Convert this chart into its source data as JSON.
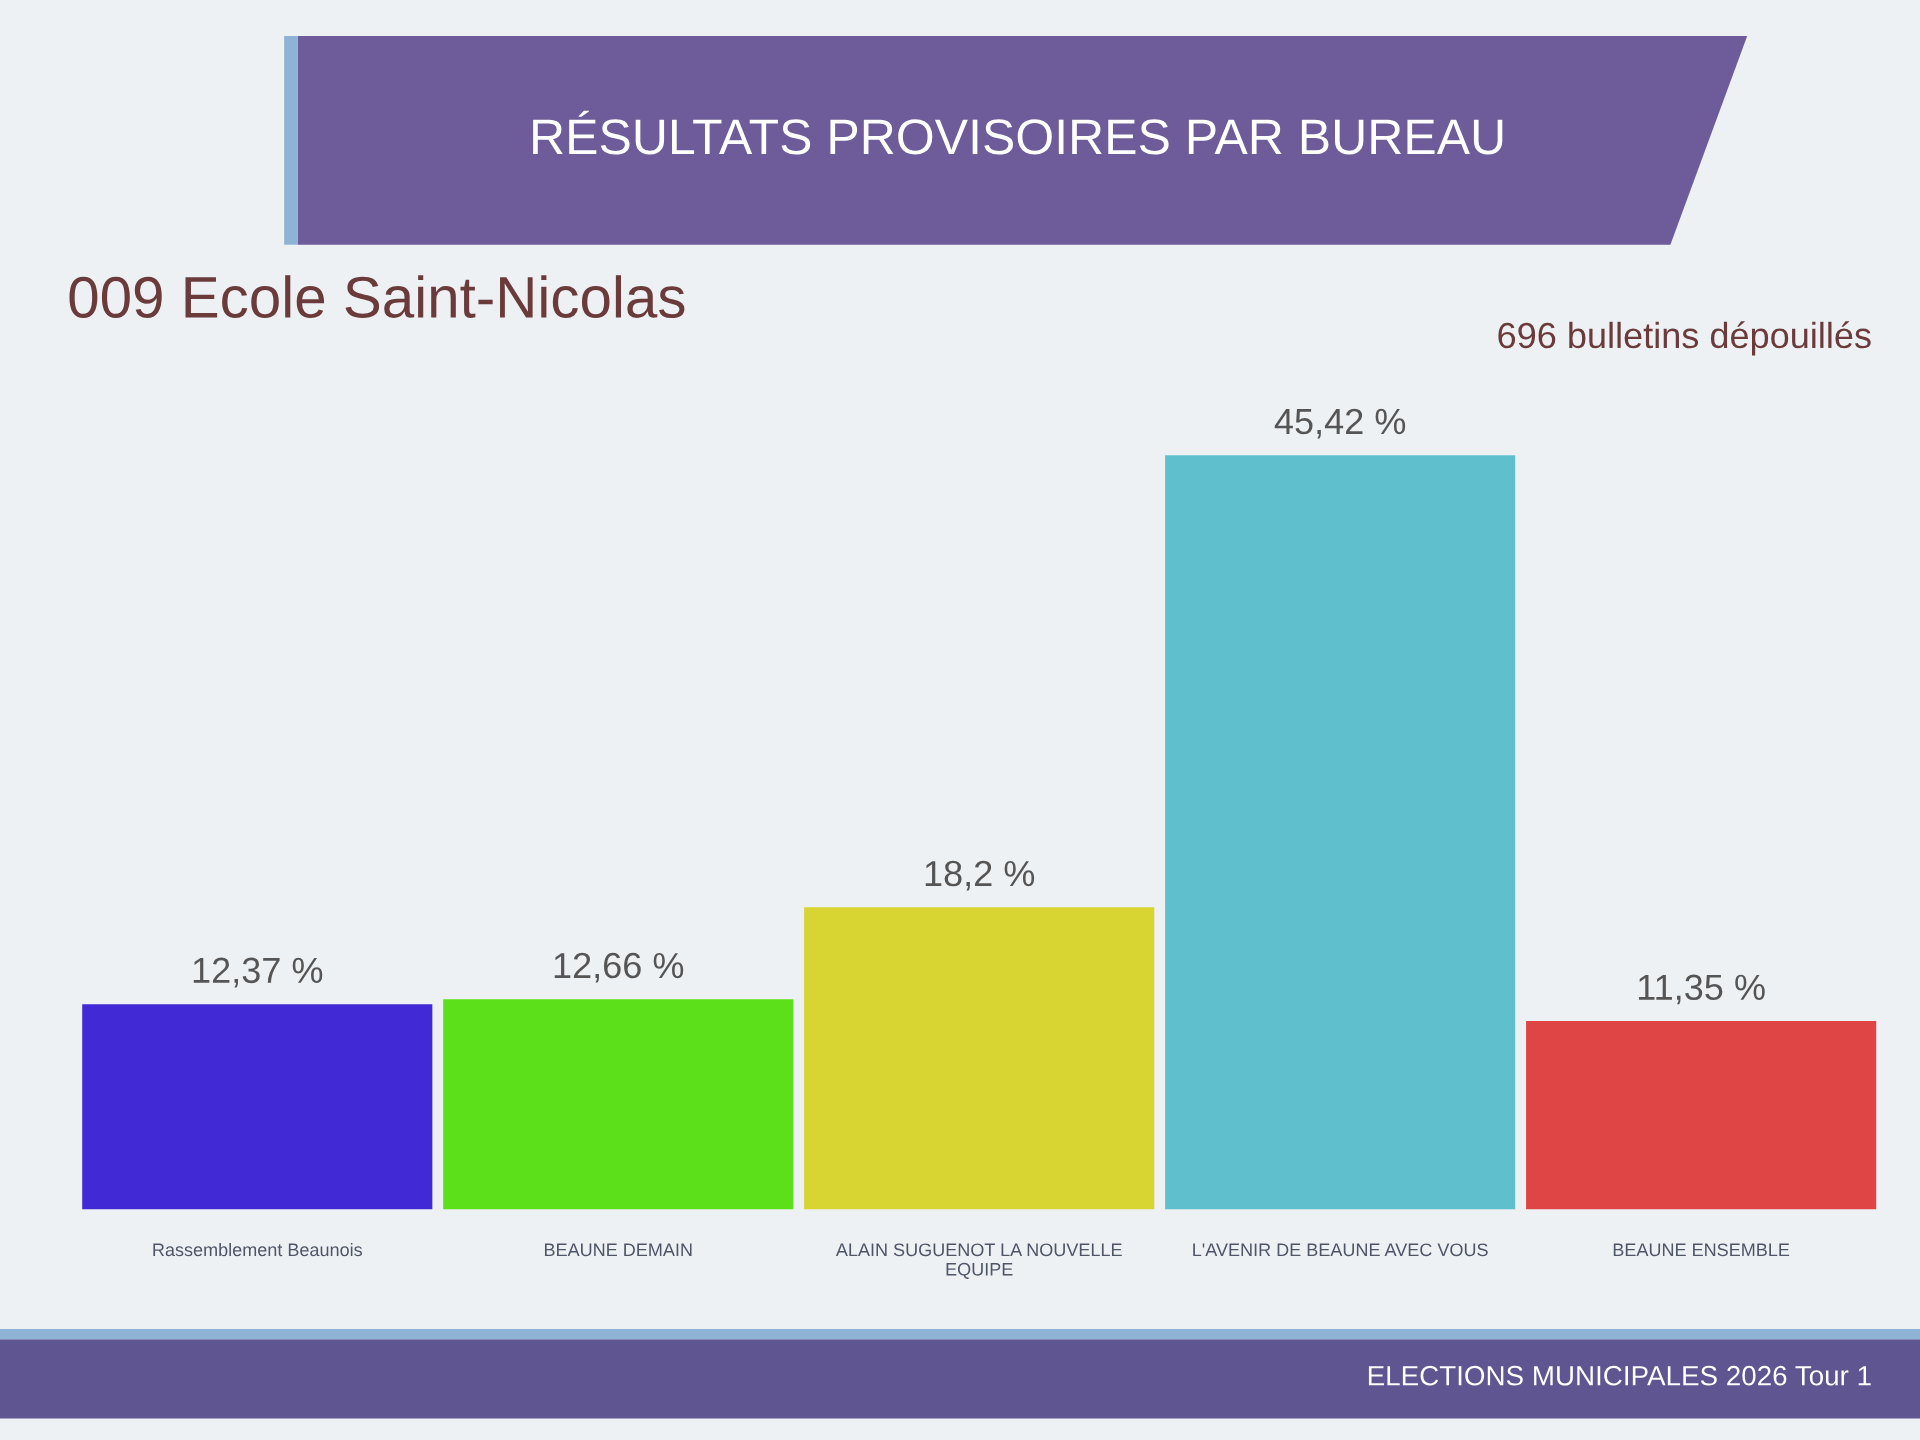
{
  "chart_data": {
    "type": "bar",
    "title": "RÉSULTATS PROVISOIRES PAR BUREAU",
    "subtitle": "009 Ecole Saint-Nicolas",
    "categories": [
      "Rassemblement Beaunois",
      "BEAUNE DEMAIN",
      "ALAIN SUGUENOT LA NOUVELLE\nEQUIPE",
      "L'AVENIR DE BEAUNE AVEC VOUS",
      "BEAUNE ENSEMBLE"
    ],
    "values": [
      12.37,
      12.66,
      18.2,
      45.42,
      11.35
    ],
    "value_labels": [
      "12,37 %",
      "12,66 %",
      "18,2 %",
      "45,42 %",
      "11,35 %"
    ],
    "colors": [
      "#4229d6",
      "#5ce01a",
      "#d8d432",
      "#60bfcc",
      "#e04545"
    ],
    "annotations": [
      "696 bulletins dépouillés",
      "ELECTIONS MUNICIPALES 2026 Tour 1"
    ]
  }
}
